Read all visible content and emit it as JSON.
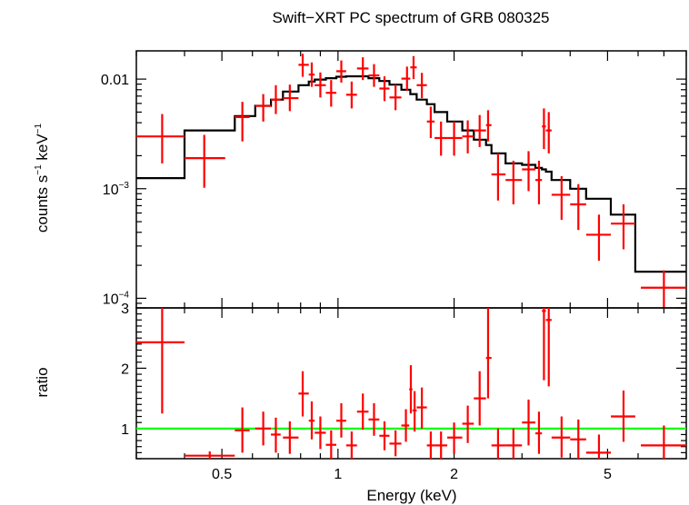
{
  "chart_data": [
    {
      "type": "scatter",
      "panel": "spectrum",
      "title": "Swift−XRT PC spectrum of GRB 080325",
      "ylabel_main": "counts s",
      "ylabel_sup1": "−1",
      "ylabel_mid": " keV",
      "ylabel_sup2": "−1",
      "xscale": "log",
      "yscale": "log",
      "xlim": [
        0.3,
        8.0
      ],
      "ylim": [
        8.17e-05,
        0.0181
      ],
      "yticks": [
        {
          "value": 0.01,
          "label": "0.01",
          "base": "",
          "exp": ""
        },
        {
          "value": 0.001,
          "label": "",
          "base": "10",
          "exp": "−3"
        },
        {
          "value": 0.0001,
          "label": "",
          "base": "10",
          "exp": "−4"
        }
      ],
      "series": [
        {
          "kind": "data",
          "color": "#ff0000",
          "points": [
            {
              "x": 0.35,
              "xlo": 0.3,
              "xhi": 0.4,
              "y": 0.003,
              "ylo": 0.0017,
              "yhi": 0.0048
            },
            {
              "x": 0.45,
              "xlo": 0.4,
              "xhi": 0.51,
              "y": 0.0019,
              "ylo": 0.00102,
              "yhi": 0.0031
            },
            {
              "x": 0.565,
              "xlo": 0.54,
              "xhi": 0.59,
              "y": 0.0045,
              "ylo": 0.0027,
              "yhi": 0.0062
            },
            {
              "x": 0.64,
              "xlo": 0.61,
              "xhi": 0.67,
              "y": 0.0057,
              "ylo": 0.0041,
              "yhi": 0.0073
            },
            {
              "x": 0.69,
              "xlo": 0.67,
              "xhi": 0.71,
              "y": 0.0065,
              "ylo": 0.0048,
              "yhi": 0.0088
            },
            {
              "x": 0.75,
              "xlo": 0.72,
              "xhi": 0.79,
              "y": 0.0067,
              "ylo": 0.0051,
              "yhi": 0.0089
            },
            {
              "x": 0.81,
              "xlo": 0.79,
              "xhi": 0.84,
              "y": 0.0135,
              "ylo": 0.0105,
              "yhi": 0.017
            },
            {
              "x": 0.855,
              "xlo": 0.84,
              "xhi": 0.87,
              "y": 0.011,
              "ylo": 0.0085,
              "yhi": 0.0142
            },
            {
              "x": 0.9,
              "xlo": 0.87,
              "xhi": 0.93,
              "y": 0.0088,
              "ylo": 0.0068,
              "yhi": 0.0115
            },
            {
              "x": 0.96,
              "xlo": 0.93,
              "xhi": 0.99,
              "y": 0.0075,
              "ylo": 0.0056,
              "yhi": 0.0098
            },
            {
              "x": 1.02,
              "xlo": 0.99,
              "xhi": 1.05,
              "y": 0.0118,
              "ylo": 0.0093,
              "yhi": 0.0148
            },
            {
              "x": 1.085,
              "xlo": 1.05,
              "xhi": 1.12,
              "y": 0.0072,
              "ylo": 0.0054,
              "yhi": 0.0095
            },
            {
              "x": 1.16,
              "xlo": 1.12,
              "xhi": 1.2,
              "y": 0.0125,
              "ylo": 0.0098,
              "yhi": 0.0158
            },
            {
              "x": 1.24,
              "xlo": 1.2,
              "xhi": 1.28,
              "y": 0.0108,
              "ylo": 0.0085,
              "yhi": 0.0137
            },
            {
              "x": 1.32,
              "xlo": 1.28,
              "xhi": 1.36,
              "y": 0.0082,
              "ylo": 0.0063,
              "yhi": 0.0106
            },
            {
              "x": 1.41,
              "xlo": 1.36,
              "xhi": 1.46,
              "y": 0.0068,
              "ylo": 0.0052,
              "yhi": 0.0089
            },
            {
              "x": 1.51,
              "xlo": 1.46,
              "xhi": 1.54,
              "y": 0.0101,
              "ylo": 0.0078,
              "yhi": 0.013
            },
            {
              "x": 1.57,
              "xlo": 1.54,
              "xhi": 1.6,
              "y": 0.0128,
              "ylo": 0.01,
              "yhi": 0.0162
            },
            {
              "x": 1.65,
              "xlo": 1.6,
              "xhi": 1.7,
              "y": 0.0088,
              "ylo": 0.0067,
              "yhi": 0.0114
            },
            {
              "x": 1.74,
              "xlo": 1.7,
              "xhi": 1.78,
              "y": 0.0041,
              "ylo": 0.0029,
              "yhi": 0.0056
            },
            {
              "x": 1.85,
              "xlo": 1.78,
              "xhi": 1.92,
              "y": 0.0029,
              "ylo": 0.002,
              "yhi": 0.0041
            },
            {
              "x": 2.0,
              "xlo": 1.92,
              "xhi": 2.1,
              "y": 0.0029,
              "ylo": 0.002,
              "yhi": 0.0041
            },
            {
              "x": 2.17,
              "xlo": 2.1,
              "xhi": 2.25,
              "y": 0.003,
              "ylo": 0.0021,
              "yhi": 0.0042
            },
            {
              "x": 2.33,
              "xlo": 2.25,
              "xhi": 2.42,
              "y": 0.0034,
              "ylo": 0.0024,
              "yhi": 0.0047
            },
            {
              "x": 2.45,
              "xlo": 2.42,
              "xhi": 2.5,
              "y": 0.0038,
              "ylo": 0.0027,
              "yhi": 0.0052
            },
            {
              "x": 2.6,
              "xlo": 2.5,
              "xhi": 2.72,
              "y": 0.00135,
              "ylo": 0.00078,
              "yhi": 0.0021
            },
            {
              "x": 2.85,
              "xlo": 2.72,
              "xhi": 3.0,
              "y": 0.0012,
              "ylo": 0.00072,
              "yhi": 0.0018
            },
            {
              "x": 3.12,
              "xlo": 3.0,
              "xhi": 3.25,
              "y": 0.0015,
              "ylo": 0.00095,
              "yhi": 0.0022
            },
            {
              "x": 3.32,
              "xlo": 3.25,
              "xhi": 3.38,
              "y": 0.0012,
              "ylo": 0.00072,
              "yhi": 0.0018
            },
            {
              "x": 3.42,
              "xlo": 3.38,
              "xhi": 3.46,
              "y": 0.0037,
              "ylo": 0.0023,
              "yhi": 0.0054
            },
            {
              "x": 3.52,
              "xlo": 3.46,
              "xhi": 3.58,
              "y": 0.0034,
              "ylo": 0.0021,
              "yhi": 0.005
            },
            {
              "x": 3.8,
              "xlo": 3.58,
              "xhi": 4.0,
              "y": 0.00088,
              "ylo": 0.00052,
              "yhi": 0.0013
            },
            {
              "x": 4.2,
              "xlo": 4.0,
              "xhi": 4.4,
              "y": 0.00072,
              "ylo": 0.00042,
              "yhi": 0.0011
            },
            {
              "x": 4.75,
              "xlo": 4.4,
              "xhi": 5.1,
              "y": 0.00038,
              "ylo": 0.00022,
              "yhi": 0.00058
            },
            {
              "x": 5.5,
              "xlo": 5.1,
              "xhi": 5.9,
              "y": 0.00048,
              "ylo": 0.00028,
              "yhi": 0.00072
            },
            {
              "x": 7.0,
              "xlo": 6.1,
              "xhi": 8.0,
              "y": 0.000125,
              "ylo": 8.2e-05,
              "yhi": 0.00018
            }
          ]
        },
        {
          "kind": "model",
          "color": "#000000",
          "edges": [
            0.3,
            0.4,
            0.54,
            0.61,
            0.67,
            0.72,
            0.79,
            0.84,
            0.87,
            0.93,
            0.99,
            1.05,
            1.12,
            1.2,
            1.28,
            1.36,
            1.46,
            1.54,
            1.6,
            1.7,
            1.78,
            1.92,
            2.1,
            2.25,
            2.42,
            2.5,
            2.72,
            3.0,
            3.25,
            3.38,
            3.46,
            3.58,
            4.0,
            4.4,
            5.1,
            5.9,
            8.0
          ],
          "values": [
            0.00125,
            0.0034,
            0.0046,
            0.0057,
            0.0065,
            0.0077,
            0.0088,
            0.0095,
            0.0099,
            0.0102,
            0.0105,
            0.0106,
            0.0106,
            0.0102,
            0.0096,
            0.0089,
            0.008,
            0.0073,
            0.0065,
            0.0059,
            0.005,
            0.0041,
            0.0034,
            0.0028,
            0.0025,
            0.0021,
            0.0017,
            0.00165,
            0.00155,
            0.0015,
            0.00143,
            0.0012,
            0.001,
            0.00081,
            0.00058,
            0.000175
          ]
        }
      ]
    },
    {
      "type": "scatter",
      "panel": "ratio",
      "xlabel": "Energy (keV)",
      "ylabel": "ratio",
      "xscale": "log",
      "xlim": [
        0.3,
        8.0
      ],
      "ylim": [
        0.5,
        3.0
      ],
      "xticks": [
        {
          "value": 0.5,
          "label": "0.5"
        },
        {
          "value": 1,
          "label": "1"
        },
        {
          "value": 2,
          "label": "2"
        },
        {
          "value": 5,
          "label": "5"
        }
      ],
      "yticks": [
        {
          "value": 1,
          "label": "1"
        },
        {
          "value": 2,
          "label": "2"
        },
        {
          "value": 3,
          "label": "3"
        }
      ],
      "reference_line": {
        "y": 1.0,
        "color": "#00ff00"
      },
      "series": [
        {
          "kind": "ratio",
          "color": "#ff0000",
          "points": [
            {
              "x": 0.35,
              "xlo": 0.3,
              "xhi": 0.4,
              "y": 2.43,
              "ylo": 1.25,
              "yhi": 3.0
            },
            {
              "x": 0.465,
              "xlo": 0.4,
              "xhi": 0.54,
              "y": 0.55,
              "ylo": 0.5,
              "yhi": 0.62
            },
            {
              "x": 0.565,
              "xlo": 0.54,
              "xhi": 0.59,
              "y": 0.97,
              "ylo": 0.6,
              "yhi": 1.35
            },
            {
              "x": 0.64,
              "xlo": 0.61,
              "xhi": 0.67,
              "y": 1.0,
              "ylo": 0.72,
              "yhi": 1.28
            },
            {
              "x": 0.69,
              "xlo": 0.67,
              "xhi": 0.71,
              "y": 0.9,
              "ylo": 0.6,
              "yhi": 1.18
            },
            {
              "x": 0.75,
              "xlo": 0.72,
              "xhi": 0.79,
              "y": 0.85,
              "ylo": 0.58,
              "yhi": 1.12
            },
            {
              "x": 0.81,
              "xlo": 0.79,
              "xhi": 0.84,
              "y": 1.58,
              "ylo": 1.2,
              "yhi": 1.95
            },
            {
              "x": 0.855,
              "xlo": 0.84,
              "xhi": 0.87,
              "y": 1.13,
              "ylo": 0.82,
              "yhi": 1.45
            },
            {
              "x": 0.9,
              "xlo": 0.87,
              "xhi": 0.93,
              "y": 0.93,
              "ylo": 0.66,
              "yhi": 1.2
            },
            {
              "x": 0.96,
              "xlo": 0.93,
              "xhi": 0.99,
              "y": 0.73,
              "ylo": 0.5,
              "yhi": 0.97
            },
            {
              "x": 1.02,
              "xlo": 0.99,
              "xhi": 1.05,
              "y": 1.13,
              "ylo": 0.85,
              "yhi": 1.42
            },
            {
              "x": 1.085,
              "xlo": 1.05,
              "xhi": 1.12,
              "y": 0.72,
              "ylo": 0.5,
              "yhi": 0.95
            },
            {
              "x": 1.16,
              "xlo": 1.12,
              "xhi": 1.2,
              "y": 1.28,
              "ylo": 0.98,
              "yhi": 1.58
            },
            {
              "x": 1.24,
              "xlo": 1.2,
              "xhi": 1.28,
              "y": 1.15,
              "ylo": 0.88,
              "yhi": 1.42
            },
            {
              "x": 1.32,
              "xlo": 1.28,
              "xhi": 1.36,
              "y": 0.88,
              "ylo": 0.64,
              "yhi": 1.12
            },
            {
              "x": 1.41,
              "xlo": 1.36,
              "xhi": 1.46,
              "y": 0.75,
              "ylo": 0.54,
              "yhi": 0.97
            },
            {
              "x": 1.5,
              "xlo": 1.46,
              "xhi": 1.53,
              "y": 1.05,
              "ylo": 0.78,
              "yhi": 1.32
            },
            {
              "x": 1.545,
              "xlo": 1.53,
              "xhi": 1.56,
              "y": 1.65,
              "ylo": 1.25,
              "yhi": 2.05
            },
            {
              "x": 1.58,
              "xlo": 1.56,
              "xhi": 1.6,
              "y": 1.3,
              "ylo": 0.95,
              "yhi": 1.62
            },
            {
              "x": 1.65,
              "xlo": 1.6,
              "xhi": 1.7,
              "y": 1.35,
              "ylo": 1.0,
              "yhi": 1.68
            },
            {
              "x": 1.74,
              "xlo": 1.7,
              "xhi": 1.78,
              "y": 0.72,
              "ylo": 0.5,
              "yhi": 0.95
            },
            {
              "x": 1.85,
              "xlo": 1.78,
              "xhi": 1.92,
              "y": 0.72,
              "ylo": 0.5,
              "yhi": 0.95
            },
            {
              "x": 2.0,
              "xlo": 1.92,
              "xhi": 2.1,
              "y": 0.85,
              "ylo": 0.58,
              "yhi": 1.1
            },
            {
              "x": 2.17,
              "xlo": 2.1,
              "xhi": 2.25,
              "y": 1.08,
              "ylo": 0.76,
              "yhi": 1.38
            },
            {
              "x": 2.33,
              "xlo": 2.25,
              "xhi": 2.42,
              "y": 1.5,
              "ylo": 1.05,
              "yhi": 1.95
            },
            {
              "x": 2.45,
              "xlo": 2.42,
              "xhi": 2.5,
              "y": 2.17,
              "ylo": 1.5,
              "yhi": 3.0
            },
            {
              "x": 2.6,
              "xlo": 2.5,
              "xhi": 2.72,
              "y": 0.72,
              "ylo": 0.5,
              "yhi": 1.0
            },
            {
              "x": 2.85,
              "xlo": 2.72,
              "xhi": 3.0,
              "y": 0.72,
              "ylo": 0.5,
              "yhi": 1.0
            },
            {
              "x": 3.12,
              "xlo": 3.0,
              "xhi": 3.25,
              "y": 1.1,
              "ylo": 0.72,
              "yhi": 1.48
            },
            {
              "x": 3.32,
              "xlo": 3.25,
              "xhi": 3.38,
              "y": 0.92,
              "ylo": 0.58,
              "yhi": 1.28
            },
            {
              "x": 3.42,
              "xlo": 3.38,
              "xhi": 3.46,
              "y": 2.95,
              "ylo": 1.8,
              "yhi": 3.0
            },
            {
              "x": 3.52,
              "xlo": 3.46,
              "xhi": 3.58,
              "y": 2.8,
              "ylo": 1.7,
              "yhi": 3.0
            },
            {
              "x": 3.8,
              "xlo": 3.58,
              "xhi": 4.0,
              "y": 0.85,
              "ylo": 0.52,
              "yhi": 1.2
            },
            {
              "x": 4.2,
              "xlo": 4.0,
              "xhi": 4.4,
              "y": 0.82,
              "ylo": 0.5,
              "yhi": 1.15
            },
            {
              "x": 4.75,
              "xlo": 4.4,
              "xhi": 5.1,
              "y": 0.6,
              "ylo": 0.5,
              "yhi": 0.9
            },
            {
              "x": 5.5,
              "xlo": 5.1,
              "xhi": 5.9,
              "y": 1.2,
              "ylo": 0.78,
              "yhi": 1.63
            },
            {
              "x": 7.0,
              "xlo": 6.1,
              "xhi": 8.0,
              "y": 0.72,
              "ylo": 0.5,
              "yhi": 1.05
            }
          ]
        }
      ]
    }
  ]
}
